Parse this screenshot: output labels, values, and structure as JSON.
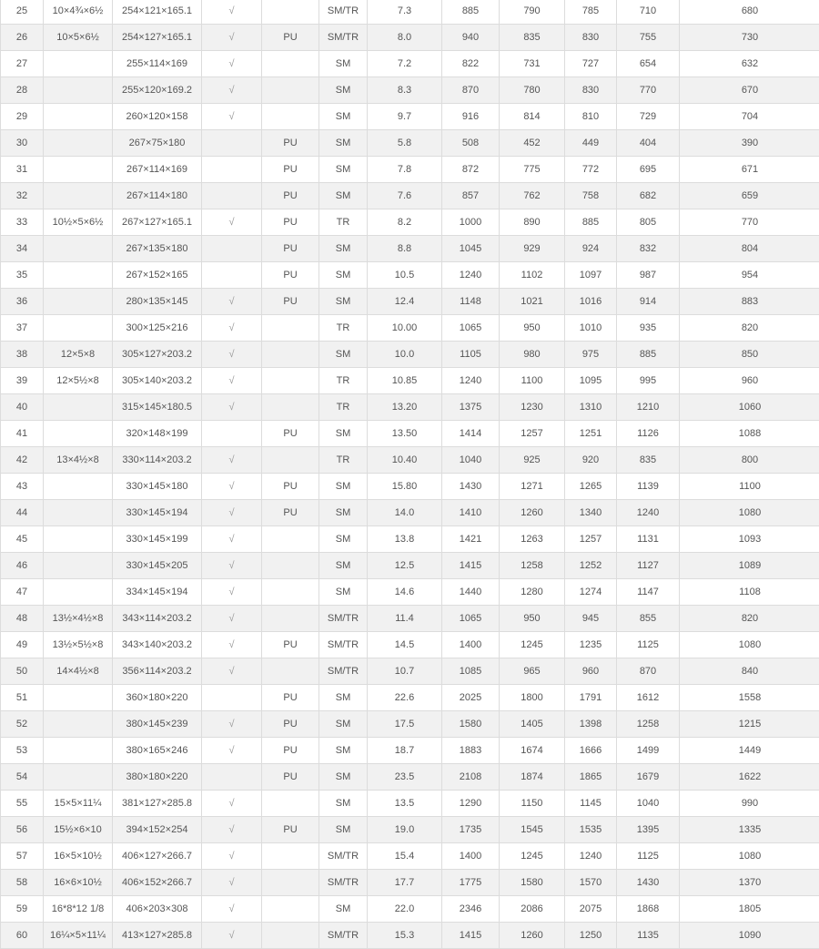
{
  "table": {
    "rows": [
      [
        "25",
        "10×4¾×6½",
        "254×121×165.1",
        "√",
        "",
        "SM/TR",
        "7.3",
        "885",
        "790",
        "785",
        "710",
        "680"
      ],
      [
        "26",
        "10×5×6½",
        "254×127×165.1",
        "√",
        "PU",
        "SM/TR",
        "8.0",
        "940",
        "835",
        "830",
        "755",
        "730"
      ],
      [
        "27",
        "",
        "255×114×169",
        "√",
        "",
        "SM",
        "7.2",
        "822",
        "731",
        "727",
        "654",
        "632"
      ],
      [
        "28",
        "",
        "255×120×169.2",
        "√",
        "",
        "SM",
        "8.3",
        "870",
        "780",
        "830",
        "770",
        "670"
      ],
      [
        "29",
        "",
        "260×120×158",
        "√",
        "",
        "SM",
        "9.7",
        "916",
        "814",
        "810",
        "729",
        "704"
      ],
      [
        "30",
        "",
        "267×75×180",
        "",
        "PU",
        "SM",
        "5.8",
        "508",
        "452",
        "449",
        "404",
        "390"
      ],
      [
        "31",
        "",
        "267×114×169",
        "",
        "PU",
        "SM",
        "7.8",
        "872",
        "775",
        "772",
        "695",
        "671"
      ],
      [
        "32",
        "",
        "267×114×180",
        "",
        "PU",
        "SM",
        "7.6",
        "857",
        "762",
        "758",
        "682",
        "659"
      ],
      [
        "33",
        "10½×5×6½",
        "267×127×165.1",
        "√",
        "PU",
        "TR",
        "8.2",
        "1000",
        "890",
        "885",
        "805",
        "770"
      ],
      [
        "34",
        "",
        "267×135×180",
        "",
        "PU",
        "SM",
        "8.8",
        "1045",
        "929",
        "924",
        "832",
        "804"
      ],
      [
        "35",
        "",
        "267×152×165",
        "",
        "PU",
        "SM",
        "10.5",
        "1240",
        "1102",
        "1097",
        "987",
        "954"
      ],
      [
        "36",
        "",
        "280×135×145",
        "√",
        "PU",
        "SM",
        "12.4",
        "1148",
        "1021",
        "1016",
        "914",
        "883"
      ],
      [
        "37",
        "",
        "300×125×216",
        "√",
        "",
        "TR",
        "10.00",
        "1065",
        "950",
        "1010",
        "935",
        "820"
      ],
      [
        "38",
        "12×5×8",
        "305×127×203.2",
        "√",
        "",
        "SM",
        "10.0",
        "1105",
        "980",
        "975",
        "885",
        "850"
      ],
      [
        "39",
        "12×5½×8",
        "305×140×203.2",
        "√",
        "",
        "TR",
        "10.85",
        "1240",
        "1100",
        "1095",
        "995",
        "960"
      ],
      [
        "40",
        "",
        "315×145×180.5",
        "√",
        "",
        "TR",
        "13.20",
        "1375",
        "1230",
        "1310",
        "1210",
        "1060"
      ],
      [
        "41",
        "",
        "320×148×199",
        "",
        "PU",
        "SM",
        "13.50",
        "1414",
        "1257",
        "1251",
        "1126",
        "1088"
      ],
      [
        "42",
        "13×4½×8",
        "330×114×203.2",
        "√",
        "",
        "TR",
        "10.40",
        "1040",
        "925",
        "920",
        "835",
        "800"
      ],
      [
        "43",
        "",
        "330×145×180",
        "√",
        "PU",
        "SM",
        "15.80",
        "1430",
        "1271",
        "1265",
        "1139",
        "1100"
      ],
      [
        "44",
        "",
        "330×145×194",
        "√",
        "PU",
        "SM",
        "14.0",
        "1410",
        "1260",
        "1340",
        "1240",
        "1080"
      ],
      [
        "45",
        "",
        "330×145×199",
        "√",
        "",
        "SM",
        "13.8",
        "1421",
        "1263",
        "1257",
        "1131",
        "1093"
      ],
      [
        "46",
        "",
        "330×145×205",
        "√",
        "",
        "SM",
        "12.5",
        "1415",
        "1258",
        "1252",
        "1127",
        "1089"
      ],
      [
        "47",
        "",
        "334×145×194",
        "√",
        "",
        "SM",
        "14.6",
        "1440",
        "1280",
        "1274",
        "1147",
        "1108"
      ],
      [
        "48",
        "13½×4½×8",
        "343×114×203.2",
        "√",
        "",
        "SM/TR",
        "11.4",
        "1065",
        "950",
        "945",
        "855",
        "820"
      ],
      [
        "49",
        "13½×5½×8",
        "343×140×203.2",
        "√",
        "PU",
        "SM/TR",
        "14.5",
        "1400",
        "1245",
        "1235",
        "1125",
        "1080"
      ],
      [
        "50",
        "14×4½×8",
        "356×114×203.2",
        "√",
        "",
        "SM/TR",
        "10.7",
        "1085",
        "965",
        "960",
        "870",
        "840"
      ],
      [
        "51",
        "",
        "360×180×220",
        "",
        "PU",
        "SM",
        "22.6",
        "2025",
        "1800",
        "1791",
        "1612",
        "1558"
      ],
      [
        "52",
        "",
        "380×145×239",
        "√",
        "PU",
        "SM",
        "17.5",
        "1580",
        "1405",
        "1398",
        "1258",
        "1215"
      ],
      [
        "53",
        "",
        "380×165×246",
        "√",
        "PU",
        "SM",
        "18.7",
        "1883",
        "1674",
        "1666",
        "1499",
        "1449"
      ],
      [
        "54",
        "",
        "380×180×220",
        "",
        "PU",
        "SM",
        "23.5",
        "2108",
        "1874",
        "1865",
        "1679",
        "1622"
      ],
      [
        "55",
        "15×5×11¼",
        "381×127×285.8",
        "√",
        "",
        "SM",
        "13.5",
        "1290",
        "1150",
        "1145",
        "1040",
        "990"
      ],
      [
        "56",
        "15½×6×10",
        "394×152×254",
        "√",
        "PU",
        "SM",
        "19.0",
        "1735",
        "1545",
        "1535",
        "1395",
        "1335"
      ],
      [
        "57",
        "16×5×10½",
        "406×127×266.7",
        "√",
        "",
        "SM/TR",
        "15.4",
        "1400",
        "1245",
        "1240",
        "1125",
        "1080"
      ],
      [
        "58",
        "16×6×10½",
        "406×152×266.7",
        "√",
        "",
        "SM/TR",
        "17.7",
        "1775",
        "1580",
        "1570",
        "1430",
        "1370"
      ],
      [
        "59",
        "16*8*12 1/8",
        "406×203×308",
        "√",
        "",
        "SM",
        "22.0",
        "2346",
        "2086",
        "2075",
        "1868",
        "1805"
      ],
      [
        "60",
        "16¼×5×11¼",
        "413×127×285.8",
        "√",
        "",
        "SM/TR",
        "15.3",
        "1415",
        "1260",
        "1250",
        "1135",
        "1090"
      ]
    ]
  }
}
